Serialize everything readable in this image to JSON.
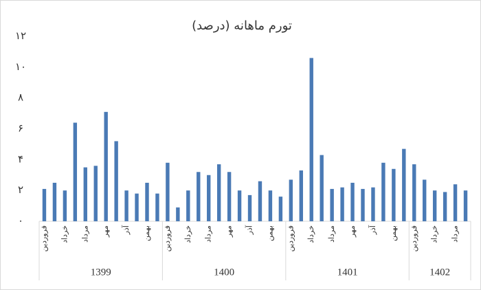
{
  "chart_data": {
    "type": "bar",
    "title": "تورم ماهانه (درصد)",
    "color": "#4a7ab5",
    "grid": false,
    "ylim": [
      0,
      12
    ],
    "yticks": [
      {
        "value": 0,
        "label": "۰"
      },
      {
        "value": 2,
        "label": "۲"
      },
      {
        "value": 4,
        "label": "۴"
      },
      {
        "value": 6,
        "label": "۶"
      },
      {
        "value": 8,
        "label": "۸"
      },
      {
        "value": 10,
        "label": "۱۰"
      },
      {
        "value": 12,
        "label": "۱۲"
      }
    ],
    "groups": [
      {
        "name": "1399",
        "categories": [
          "فروردین",
          null,
          "خرداد",
          null,
          "مرداد",
          null,
          "مهر",
          null,
          "آذر",
          null,
          "بهمن",
          null
        ],
        "values": [
          2.1,
          2.5,
          2.0,
          6.4,
          3.5,
          3.6,
          7.1,
          5.2,
          2.0,
          1.8,
          2.5,
          1.8
        ]
      },
      {
        "name": "1400",
        "categories": [
          "فروردین",
          null,
          "خرداد",
          null,
          "مرداد",
          null,
          "مهر",
          null,
          "آذر",
          null,
          "بهمن",
          null
        ],
        "values": [
          3.8,
          0.9,
          2.0,
          3.2,
          3.0,
          3.7,
          3.2,
          2.0,
          1.7,
          2.6,
          2.0,
          1.6
        ]
      },
      {
        "name": "1401",
        "categories": [
          "فروردین",
          null,
          "خرداد",
          null,
          "مرداد",
          null,
          "مهر",
          null,
          "آذر",
          null,
          "بهمن",
          null
        ],
        "values": [
          2.7,
          3.3,
          10.6,
          4.3,
          2.1,
          2.2,
          2.5,
          2.1,
          2.2,
          3.8,
          3.4,
          4.7
        ]
      },
      {
        "name": "1402",
        "categories": [
          "فروردین",
          null,
          "خرداد",
          null,
          "مرداد",
          null
        ],
        "values": [
          3.7,
          2.7,
          2.0,
          1.9,
          2.4,
          2.0
        ]
      }
    ]
  }
}
